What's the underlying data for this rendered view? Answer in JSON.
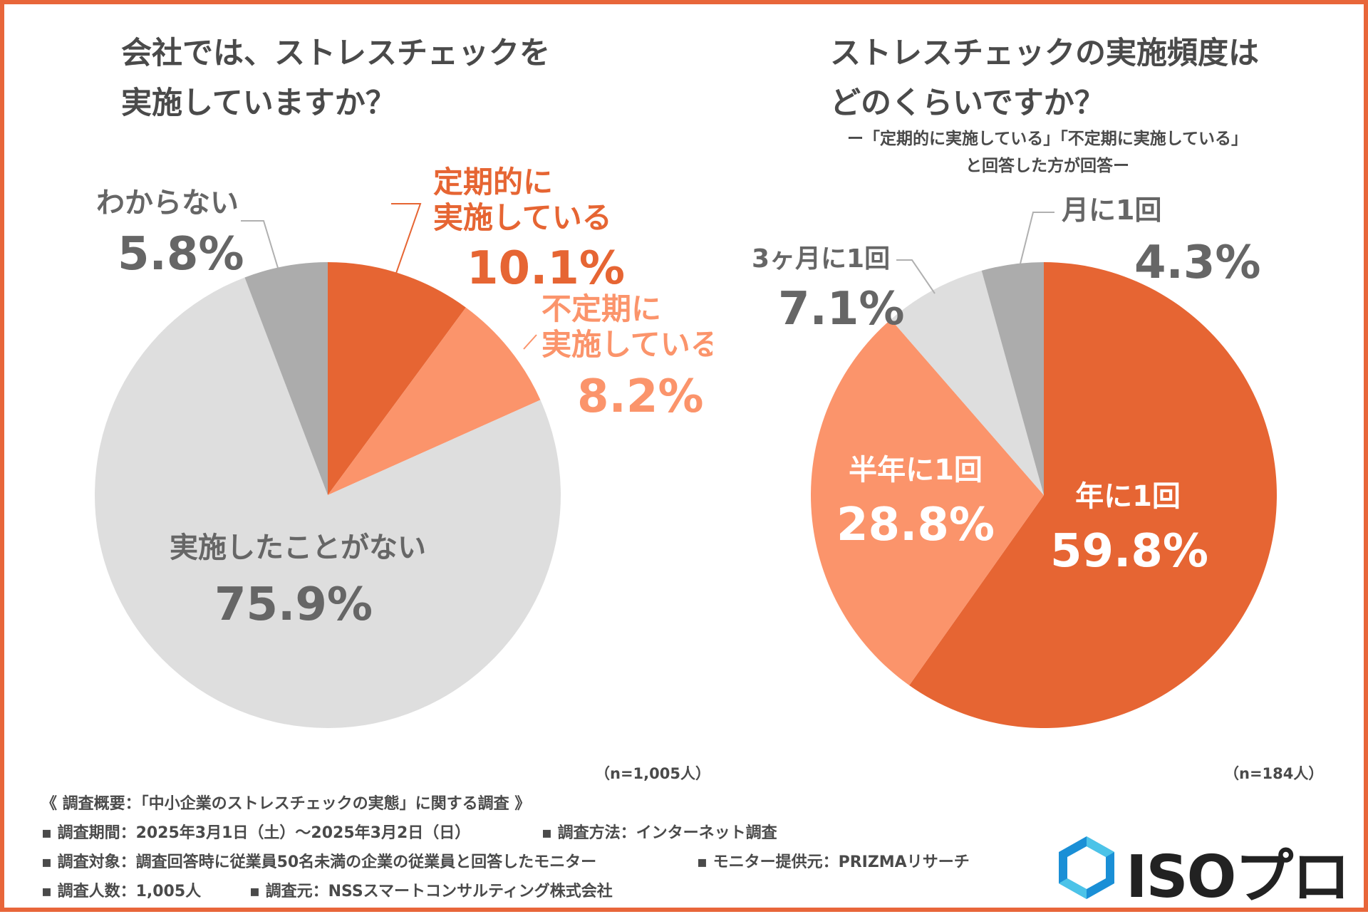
{
  "left": {
    "title_line1": "会社では、ストレスチェックを",
    "title_line2": "実施していますか？",
    "n_note": "（n=1,005人）"
  },
  "right": {
    "title_line1": "ストレスチェックの実施頻度は",
    "title_line2": "どのくらいですか？",
    "subtitle_line1": "ー「定期的に実施している」「不定期に実施している」",
    "subtitle_line2": "と回答した方が回答ー",
    "n_note": "（n=184人）"
  },
  "chart_data": [
    {
      "type": "pie",
      "title": "会社では、ストレスチェックを実施していますか？",
      "start": "12 o'clock",
      "direction": "clockwise",
      "slices": [
        {
          "label_lines": [
            "定期的に",
            "実施している"
          ],
          "value": 10.1,
          "value_label": "10.1%",
          "color": "#e66533"
        },
        {
          "label_lines": [
            "不定期に",
            "実施している"
          ],
          "value": 8.2,
          "value_label": "8.2%",
          "color": "#fb946b"
        },
        {
          "label_lines": [
            "実施したことがない"
          ],
          "value": 75.9,
          "value_label": "75.9%",
          "color": "#dedede"
        },
        {
          "label_lines": [
            "わからない"
          ],
          "value": 5.8,
          "value_label": "5.8%",
          "color": "#acacac"
        }
      ]
    },
    {
      "type": "pie",
      "title": "ストレスチェックの実施頻度はどのくらいですか？",
      "start": "12 o'clock",
      "direction": "clockwise",
      "slices": [
        {
          "label_lines": [
            "年に1回"
          ],
          "value": 59.8,
          "value_label": "59.8%",
          "color": "#e66533"
        },
        {
          "label_lines": [
            "半年に1回"
          ],
          "value": 28.8,
          "value_label": "28.8%",
          "color": "#fb946b"
        },
        {
          "label_lines": [
            "3ヶ月に1回"
          ],
          "value": 7.1,
          "value_label": "7.1%",
          "color": "#dedede"
        },
        {
          "label_lines": [
            "月に1回"
          ],
          "value": 4.3,
          "value_label": "4.3%",
          "color": "#acacac"
        }
      ]
    }
  ],
  "survey": {
    "heading": "《 調査概要：「中小企業のストレスチェックの実態」に関する調査 》",
    "period": "▪ 調査期間：2025年3月1日（土）〜2025年3月2日（日）",
    "method": "▪ 調査方法：インターネット調査",
    "target": "▪ 調査対象：調査回答時に従業員50名未満の企業の従業員と回答したモニター",
    "provider": "▪ モニター提供元：PRIZMAリサーチ",
    "count": "▪ 調査人数：1,005人",
    "source": "▪ 調査元：NSSスマートコンサルティング株式会社"
  },
  "logo": {
    "text": "ISOプロ",
    "colors": [
      "#1a8fd6",
      "#4cc3e8"
    ]
  }
}
